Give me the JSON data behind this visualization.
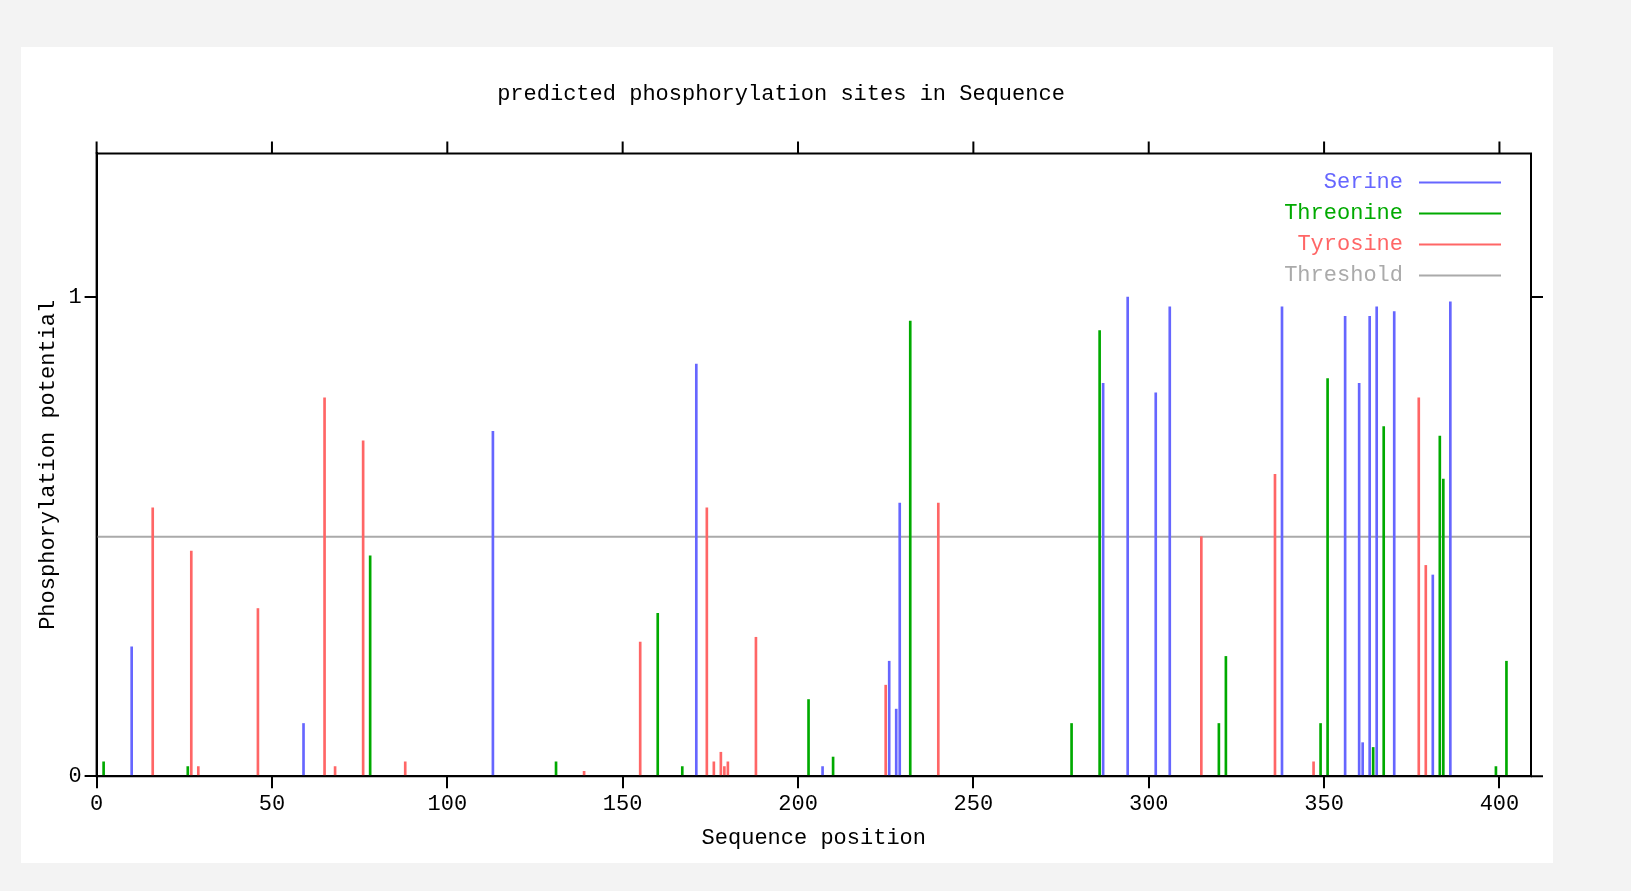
{
  "chart_data": {
    "type": "bar",
    "title": "predicted phosphorylation sites in Sequence",
    "xlabel": "Sequence position",
    "ylabel": "Phosphorylation potential",
    "xlim": [
      0,
      409
    ],
    "xticks": [
      0,
      50,
      100,
      150,
      200,
      250,
      300,
      350,
      400
    ],
    "ylim": [
      0,
      1.3
    ],
    "yticks": [
      0,
      1
    ],
    "legend": "top right",
    "ref_lines": [
      {
        "axis": "y",
        "value": 0.5,
        "label": "Threshold",
        "color": "#aaaaaa"
      }
    ],
    "series": [
      {
        "name": "Serine",
        "color": "#6666ff",
        "x": [
          10,
          59,
          113,
          171,
          207,
          226,
          228,
          229,
          287,
          294,
          302,
          306,
          338,
          356,
          360,
          361,
          363,
          365,
          370,
          381,
          386
        ],
        "values": [
          0.27,
          0.11,
          0.72,
          0.86,
          0.02,
          0.24,
          0.14,
          0.57,
          0.82,
          1.0,
          0.8,
          0.98,
          0.98,
          0.96,
          0.82,
          0.07,
          0.96,
          0.98,
          0.97,
          0.42,
          0.99
        ]
      },
      {
        "name": "Threonine",
        "color": "#00aa00",
        "x": [
          2,
          26,
          78,
          131,
          160,
          167,
          203,
          210,
          232,
          278,
          286,
          320,
          322,
          349,
          351,
          364,
          367,
          383,
          384,
          399,
          402
        ],
        "values": [
          0.03,
          0.02,
          0.46,
          0.03,
          0.34,
          0.02,
          0.16,
          0.04,
          0.95,
          0.11,
          0.93,
          0.11,
          0.25,
          0.11,
          0.83,
          0.06,
          0.73,
          0.71,
          0.62,
          0.02,
          0.24
        ]
      },
      {
        "name": "Tyrosine",
        "color": "#ff6666",
        "x": [
          16,
          27,
          29,
          46,
          65,
          68,
          76,
          88,
          139,
          155,
          174,
          176,
          178,
          179,
          180,
          188,
          225,
          240,
          315,
          336,
          347,
          377,
          379
        ],
        "values": [
          0.56,
          0.47,
          0.02,
          0.35,
          0.79,
          0.02,
          0.7,
          0.03,
          0.01,
          0.28,
          0.56,
          0.03,
          0.05,
          0.02,
          0.03,
          0.29,
          0.19,
          0.57,
          0.5,
          0.63,
          0.03,
          0.79,
          0.44
        ]
      }
    ]
  }
}
